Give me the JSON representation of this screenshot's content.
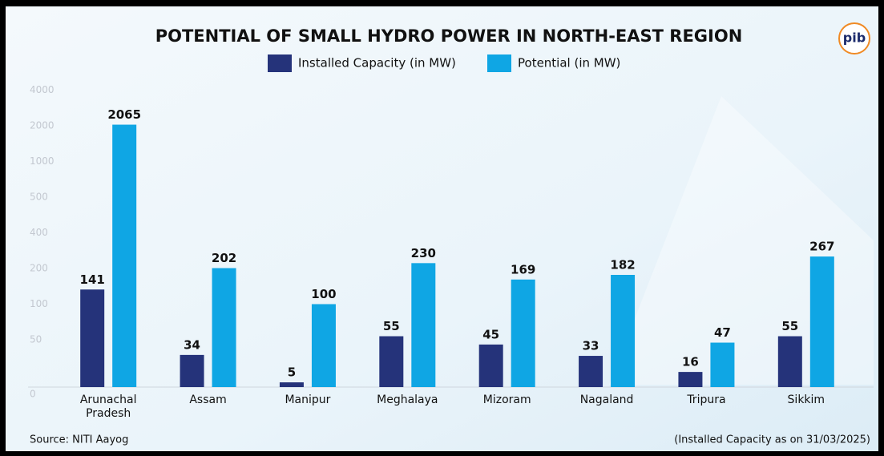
{
  "chart_data": {
    "type": "bar",
    "title": "POTENTIAL OF SMALL HYDRO POWER IN NORTH-EAST REGION",
    "logo": "pib",
    "categories": [
      "Arunachal Pradesh",
      "Assam",
      "Manipur",
      "Meghalaya",
      "Mizoram",
      "Nagaland",
      "Tripura",
      "Sikkim"
    ],
    "series": [
      {
        "name": "Installed Capacity (in MW)",
        "color": "#25337a",
        "values": [
          141,
          34,
          5,
          55,
          45,
          33,
          16,
          55
        ]
      },
      {
        "name": "Potential (in MW)",
        "color": "#0fa6e4",
        "values": [
          2065,
          202,
          100,
          230,
          169,
          182,
          47,
          267
        ]
      }
    ],
    "ylim": [
      0,
      4000
    ],
    "yticks": [
      0,
      50,
      100,
      200,
      400,
      500,
      1000,
      2000,
      4000
    ],
    "source": "Source: NITI Aayog",
    "note": "(Installed Capacity as on 31/03/2025)"
  }
}
